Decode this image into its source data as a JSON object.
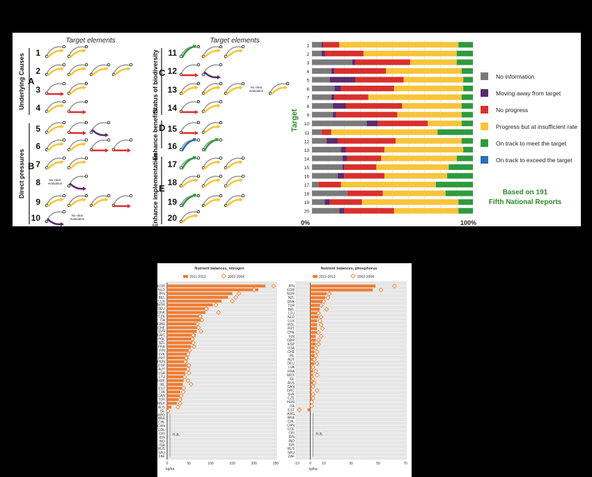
{
  "top": {
    "header_left": "Target elements",
    "header_right": "Target elements",
    "groups": [
      {
        "letter": "A",
        "label": "Underlying Causes"
      },
      {
        "letter": "B",
        "label": "Direct pressures"
      },
      {
        "letter": "C",
        "label": "Status of biodiversity"
      },
      {
        "letter": "D",
        "label": "Enhance benefits"
      },
      {
        "letter": "E",
        "label": "Enhance implementation"
      }
    ],
    "target_numbers": [
      "1",
      "2",
      "3",
      "4",
      "5",
      "6",
      "7",
      "8",
      "9",
      "10",
      "11",
      "12",
      "13",
      "14",
      "15",
      "16",
      "17",
      "18",
      "19",
      "20"
    ],
    "no_clear_text": [
      "No clear",
      "evaluation"
    ],
    "rows_left": [
      {
        "n": "1",
        "c": [
          "yellow",
          "yellow"
        ]
      },
      {
        "n": "2",
        "c": [
          "yellow",
          "yellow",
          "yellow",
          "yellow"
        ]
      },
      {
        "n": "3",
        "c": [
          "red",
          "yellow"
        ]
      },
      {
        "n": "4",
        "c": [
          "yellow",
          "red"
        ]
      },
      {
        "n": "5",
        "c": [
          "yellow",
          "red",
          "purple"
        ]
      },
      {
        "n": "6",
        "c": [
          "yellow",
          "yellow",
          "red",
          "red"
        ]
      },
      {
        "n": "7",
        "c": [
          "yellow",
          "yellow"
        ]
      },
      {
        "n": "8",
        "c": [
          "noclear",
          "purple"
        ]
      },
      {
        "n": "9",
        "c": [
          "yellow",
          "yellow",
          "yellow",
          "red"
        ]
      },
      {
        "n": "10",
        "c": [
          "purple",
          "noclear"
        ]
      }
    ],
    "rows_right": [
      {
        "n": "11",
        "c": [
          "green",
          "yellow",
          "yellow"
        ]
      },
      {
        "n": "12",
        "c": [
          "red",
          "purple"
        ]
      },
      {
        "n": "13",
        "c": [
          "yellow",
          "yellow",
          "yellow",
          "noclear",
          "yellow"
        ]
      },
      {
        "n": "14",
        "c": [
          "red",
          "yellow"
        ]
      },
      {
        "n": "15",
        "c": [
          "red",
          "yellow"
        ]
      },
      {
        "n": "16",
        "c": [
          "blue",
          "green"
        ]
      },
      {
        "n": "17",
        "c": [
          "green",
          "yellow",
          "yellow"
        ]
      },
      {
        "n": "18",
        "c": [
          "yellow",
          "yellow",
          "yellow"
        ]
      },
      {
        "n": "19",
        "c": [
          "green",
          "yellow",
          "yellow"
        ]
      },
      {
        "n": "20",
        "c": [
          "yellow"
        ]
      }
    ],
    "colors": {
      "yellow": "#f7c53a",
      "red": "#d9302c",
      "purple": "#5a2a6e",
      "green": "#2e9a3e",
      "blue": "#2c6fb0",
      "grey": "#7a7a7a"
    }
  },
  "chart_data": [
    {
      "type": "bar",
      "orientation": "horizontal-stacked-percent",
      "ylabel": "Target",
      "x_min_label": "0%",
      "x_max_label": "100%",
      "categories": [
        "1",
        "2",
        "3",
        "4",
        "5",
        "6",
        "7",
        "8",
        "9",
        "10",
        "11",
        "12",
        "13",
        "14",
        "15",
        "16",
        "17",
        "18",
        "19",
        "20"
      ],
      "series": [
        {
          "name": "No information",
          "color": "#7a7a7a",
          "values": [
            6,
            6,
            25,
            12,
            11,
            14,
            12,
            13,
            13,
            34,
            6,
            9,
            18,
            19,
            19,
            16,
            4,
            22,
            8,
            17
          ]
        },
        {
          "name": "Moving away from target",
          "color": "#5a2a6e",
          "values": [
            1,
            2,
            2,
            2,
            16,
            4,
            2,
            8,
            2,
            7,
            0,
            7,
            3,
            3,
            1,
            4,
            0,
            0,
            3,
            3
          ]
        },
        {
          "name": "No progress",
          "color": "#d9302c",
          "values": [
            10,
            24,
            34,
            32,
            30,
            33,
            21,
            35,
            38,
            31,
            6,
            36,
            24,
            21,
            20,
            25,
            14,
            22,
            20,
            31
          ]
        },
        {
          "name": "Progress but at insufficient rate",
          "color": "#f7c53a",
          "values": [
            74,
            58,
            29,
            47,
            37,
            43,
            58,
            37,
            40,
            21,
            66,
            41,
            49,
            47,
            45,
            39,
            59,
            39,
            60,
            40
          ]
        },
        {
          "name": "On track to meet the target",
          "color": "#2e9a3e",
          "values": [
            9,
            10,
            10,
            7,
            6,
            6,
            7,
            7,
            7,
            7,
            22,
            7,
            6,
            10,
            15,
            16,
            23,
            17,
            9,
            9
          ]
        },
        {
          "name": "On track to exceed the target",
          "color": "#2c6fb0",
          "values": [
            0,
            0,
            0,
            0,
            0,
            0,
            0,
            0,
            0,
            0,
            0,
            0,
            0,
            0,
            0,
            0,
            0,
            0,
            0,
            0
          ]
        }
      ],
      "annotation": [
        "Based on 191",
        "Fifth National Reports"
      ]
    },
    {
      "type": "bar",
      "title": "Nutrient balances, nitrogen",
      "xlabel": "kg/ha",
      "xlim": [
        0,
        250
      ],
      "xticks": [
        "0",
        "50",
        "100",
        "150",
        "200",
        "250"
      ],
      "categories": [
        "KOR",
        "NLD",
        "JPN",
        "BEL",
        "LUX",
        "NOR",
        "DEU",
        "DNK",
        "CZE",
        "ITA",
        "GBR",
        "CHE",
        "SVN",
        "GRC",
        "POL",
        "NZL",
        "FRA",
        "FIN",
        "SVK",
        "PRT",
        "HUN",
        "ESP",
        "AUT",
        "USA",
        "LTU",
        "SWE",
        "IRL",
        "EST",
        "LVA",
        "CAN",
        "TUR",
        "MEX",
        "AUS",
        "ISL",
        "ARG",
        "BRA",
        "CHL",
        "CHN",
        "COL",
        "CRI",
        "IDN",
        "IND",
        "ISR",
        "RUS",
        "SAU",
        "ZAF"
      ],
      "series": [
        {
          "name": "2011-2013",
          "type": "bar",
          "values": [
            226,
            210,
            150,
            140,
            125,
            105,
            95,
            88,
            80,
            78,
            72,
            70,
            68,
            66,
            62,
            58,
            55,
            53,
            51,
            49,
            47,
            46,
            44,
            42,
            40,
            38,
            36,
            34,
            30,
            28,
            25,
            22,
            10,
            5,
            null,
            null,
            null,
            null,
            null,
            null,
            null,
            null,
            null,
            null,
            null,
            null
          ]
        },
        {
          "name": "2002-2004",
          "type": "marker",
          "values": [
            245,
            200,
            165,
            158,
            150,
            112,
            90,
            118,
            76,
            80,
            70,
            72,
            78,
            60,
            58,
            60,
            62,
            52,
            48,
            44,
            42,
            50,
            48,
            50,
            40,
            48,
            55,
            38,
            37,
            32,
            30,
            30,
            25,
            2,
            null,
            null,
            null,
            null,
            null,
            null,
            null,
            null,
            null,
            null,
            null,
            null
          ]
        }
      ],
      "na_label": "n.a."
    },
    {
      "type": "bar",
      "title": "Nutrient balances, phosphorus",
      "xlabel": "kg/ha",
      "xlim": [
        -10,
        70
      ],
      "xticks": [
        "-10",
        "0",
        "10",
        "30",
        "50",
        "70"
      ],
      "categories": [
        "JPN",
        "KOR",
        "NOR",
        "NZL",
        "DNK",
        "TUR",
        "BEL",
        "LTU",
        "NLD",
        "LUX",
        "POL",
        "PRT",
        "CHE",
        "FIN",
        "GBR",
        "ESP",
        "USA",
        "CHE",
        "IRL",
        "AUT",
        "DEU",
        "LVA",
        "FRA",
        "MEX",
        "ISL",
        "AUS",
        "CAN",
        "GRC",
        "SVK",
        "CZE",
        "HUN",
        "ITA",
        "EST",
        "ARG",
        "BRA",
        "CHL",
        "CHN",
        "COL",
        "CRI",
        "IDN",
        "IND",
        "ISR",
        "RUS",
        "SAU",
        "ZAF"
      ],
      "series": [
        {
          "name": "2011-2013",
          "type": "bar",
          "values": [
            48,
            46,
            12,
            11,
            9,
            8,
            7,
            6,
            6,
            5,
            5,
            5,
            5,
            4,
            4,
            4,
            3,
            3,
            3,
            3,
            3,
            2,
            2,
            2,
            2,
            2,
            1,
            1,
            1,
            1,
            1,
            0,
            -2,
            null,
            null,
            null,
            null,
            null,
            null,
            null,
            null,
            null,
            null,
            null,
            null
          ]
        },
        {
          "name": "2002-2004",
          "type": "marker",
          "values": [
            62,
            52,
            14,
            13,
            10,
            8,
            12,
            6,
            8,
            7,
            8,
            9,
            6,
            8,
            6,
            6,
            4,
            5,
            4,
            3,
            5,
            2,
            4,
            5,
            2,
            3,
            2,
            5,
            2,
            2,
            1,
            1,
            -8,
            null,
            null,
            null,
            null,
            null,
            null,
            null,
            null,
            null,
            null,
            null,
            null
          ]
        }
      ],
      "na_label": "n.a."
    }
  ]
}
